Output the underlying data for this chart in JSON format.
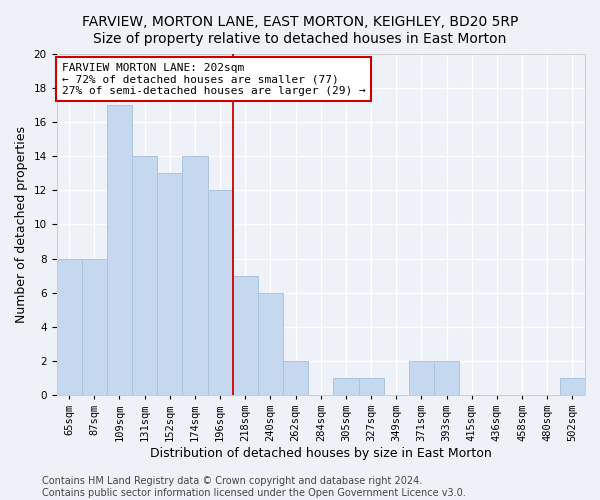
{
  "title1": "FARVIEW, MORTON LANE, EAST MORTON, KEIGHLEY, BD20 5RP",
  "title2": "Size of property relative to detached houses in East Morton",
  "xlabel": "Distribution of detached houses by size in East Morton",
  "ylabel": "Number of detached properties",
  "categories": [
    "65sqm",
    "87sqm",
    "109sqm",
    "131sqm",
    "152sqm",
    "174sqm",
    "196sqm",
    "218sqm",
    "240sqm",
    "262sqm",
    "284sqm",
    "305sqm",
    "327sqm",
    "349sqm",
    "371sqm",
    "393sqm",
    "415sqm",
    "436sqm",
    "458sqm",
    "480sqm",
    "502sqm"
  ],
  "values": [
    8,
    8,
    17,
    14,
    13,
    14,
    12,
    7,
    6,
    2,
    0,
    1,
    1,
    0,
    2,
    2,
    0,
    0,
    0,
    0,
    1
  ],
  "bar_color": "#c5d8f0",
  "bar_edge_color": "#aac4e0",
  "vline_x": 6.5,
  "vline_color": "#cc0000",
  "annotation_text": "FARVIEW MORTON LANE: 202sqm\n← 72% of detached houses are smaller (77)\n27% of semi-detached houses are larger (29) →",
  "annotation_box_color": "#ffffff",
  "annotation_box_edge": "#cc0000",
  "footer1": "Contains HM Land Registry data © Crown copyright and database right 2024.",
  "footer2": "Contains public sector information licensed under the Open Government Licence v3.0.",
  "ylim": [
    0,
    20
  ],
  "yticks": [
    0,
    2,
    4,
    6,
    8,
    10,
    12,
    14,
    16,
    18,
    20
  ],
  "background_color": "#eef2f8",
  "plot_bg_color": "#eef2f8",
  "grid_color": "#ffffff",
  "title1_fontsize": 10,
  "title2_fontsize": 10,
  "xlabel_fontsize": 9,
  "ylabel_fontsize": 9,
  "tick_fontsize": 7.5,
  "footer_fontsize": 7,
  "annotation_fontsize": 8
}
